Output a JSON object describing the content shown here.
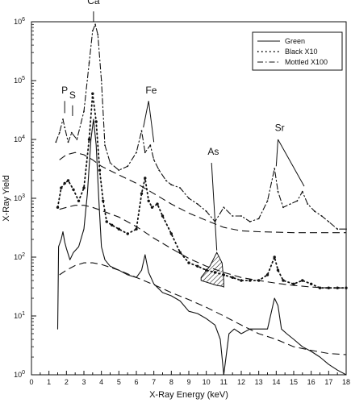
{
  "chart_data": {
    "type": "line",
    "xlabel": "X-Ray Energy (keV)",
    "ylabel": "X-Ray Yield",
    "xlim": [
      0,
      18
    ],
    "ylim": [
      1,
      1000000
    ],
    "yscale": "log",
    "x_ticks": [
      "0",
      "1",
      "2",
      "3",
      "4",
      "5",
      "6",
      "7",
      "8",
      "9",
      "10",
      "11",
      "12",
      "13",
      "14",
      "15",
      "16",
      "17",
      "18"
    ],
    "y_ticks": [
      {
        "value": 1,
        "base": "10",
        "exp": "0"
      },
      {
        "value": 10,
        "base": "10",
        "exp": "1"
      },
      {
        "value": 100,
        "base": "10",
        "exp": "2"
      },
      {
        "value": 1000,
        "base": "10",
        "exp": "3"
      },
      {
        "value": 10000,
        "base": "10",
        "exp": "4"
      },
      {
        "value": 100000,
        "base": "10",
        "exp": "5"
      },
      {
        "value": 1000000,
        "base": "10",
        "exp": "6"
      }
    ],
    "legend_position": "top-right",
    "series": [
      {
        "name": "Green",
        "style": "solid",
        "x": [
          1.5,
          1.55,
          1.7,
          1.8,
          1.9,
          2.0,
          2.2,
          2.4,
          2.7,
          3.0,
          3.2,
          3.4,
          3.55,
          3.7,
          3.85,
          4.0,
          4.2,
          4.5,
          5.0,
          5.5,
          6.0,
          6.3,
          6.5,
          6.7,
          7.0,
          7.5,
          8.0,
          8.5,
          9.0,
          9.5,
          10.0,
          10.5,
          10.8,
          11.0,
          11.3,
          11.6,
          12.0,
          12.5,
          13.0,
          13.5,
          13.9,
          14.1,
          14.3,
          14.6,
          15.0,
          15.5,
          16.0,
          16.5,
          17.0,
          17.5,
          18.0
        ],
        "y": [
          6,
          150,
          200,
          270,
          180,
          140,
          90,
          120,
          150,
          300,
          1200,
          10000,
          22000,
          8000,
          1000,
          150,
          90,
          70,
          60,
          50,
          45,
          60,
          110,
          55,
          35,
          25,
          22,
          18,
          12,
          11,
          9,
          7,
          4,
          1,
          5,
          6,
          5,
          6,
          6,
          6,
          20,
          15,
          6,
          5,
          4,
          3,
          2.5,
          2,
          1.5,
          1.2,
          1
        ]
      },
      {
        "name": "Black X10",
        "style": "dotted",
        "x": [
          1.5,
          1.7,
          1.9,
          2.1,
          2.4,
          2.7,
          3.0,
          3.3,
          3.5,
          3.7,
          3.9,
          4.1,
          4.3,
          4.6,
          5.0,
          5.5,
          6.0,
          6.3,
          6.5,
          6.7,
          6.9,
          7.2,
          7.5,
          8.0,
          8.5,
          9.0,
          9.5,
          10.0,
          10.5,
          11.0,
          11.5,
          12.0,
          12.5,
          13.0,
          13.5,
          13.9,
          14.1,
          14.4,
          15.0,
          15.5,
          16.0,
          16.5,
          17.0,
          17.5,
          18.0
        ],
        "y": [
          700,
          1500,
          1800,
          2000,
          1400,
          900,
          1500,
          10000,
          60000,
          20000,
          3000,
          900,
          400,
          350,
          300,
          250,
          300,
          1200,
          2200,
          900,
          700,
          800,
          500,
          250,
          120,
          80,
          70,
          60,
          55,
          50,
          45,
          40,
          40,
          40,
          50,
          100,
          60,
          40,
          35,
          40,
          35,
          30,
          30,
          30,
          30
        ]
      },
      {
        "name": "Mottled X100",
        "style": "dash-dot",
        "x": [
          1.4,
          1.6,
          1.8,
          1.9,
          2.1,
          2.3,
          2.6,
          3.0,
          3.3,
          3.5,
          3.65,
          3.8,
          4.0,
          4.2,
          4.5,
          5.0,
          5.5,
          6.0,
          6.3,
          6.5,
          6.8,
          7.0,
          7.3,
          7.7,
          8.0,
          8.5,
          9.0,
          9.5,
          10.0,
          10.5,
          11.0,
          11.5,
          12.0,
          12.5,
          13.0,
          13.5,
          13.9,
          14.1,
          14.4,
          14.8,
          15.2,
          15.5,
          15.8,
          16.2,
          16.6,
          17.0,
          17.5,
          18.0
        ],
        "y": [
          9000,
          13000,
          22000,
          16000,
          9000,
          13000,
          10000,
          30000,
          200000,
          700000,
          900000,
          600000,
          100000,
          8000,
          4000,
          3000,
          3500,
          6000,
          14000,
          6000,
          8000,
          4500,
          3000,
          2000,
          1700,
          1500,
          1000,
          800,
          600,
          400,
          700,
          500,
          500,
          400,
          450,
          900,
          3200,
          1300,
          700,
          800,
          900,
          1300,
          800,
          600,
          500,
          400,
          300,
          300
        ]
      }
    ],
    "backgrounds": [
      {
        "x": [
          1.6,
          2.0,
          2.5,
          3.0,
          3.5,
          4.0,
          5.0,
          6.0,
          7.0,
          8.0,
          9.0,
          10.0,
          11.0,
          12.0,
          13.0,
          14.0,
          15.0,
          16.0,
          17.0,
          18.0
        ],
        "y": [
          4500,
          5500,
          6000,
          5500,
          4500,
          3500,
          2500,
          1800,
          1200,
          800,
          560,
          420,
          320,
          280,
          270,
          265,
          260,
          260,
          260,
          260
        ]
      },
      {
        "x": [
          1.6,
          2.0,
          2.5,
          3.0,
          3.5,
          4.0,
          5.0,
          6.0,
          7.0,
          8.0,
          9.0,
          10.0,
          11.0,
          12.0,
          13.0,
          14.0,
          15.0,
          16.0,
          17.0,
          18.0
        ],
        "y": [
          650,
          700,
          760,
          760,
          700,
          620,
          480,
          330,
          210,
          140,
          95,
          70,
          55,
          45,
          40,
          36,
          33,
          31,
          30,
          30
        ]
      },
      {
        "x": [
          1.6,
          2.0,
          2.5,
          3.0,
          3.5,
          4.0,
          5.0,
          6.0,
          7.0,
          8.0,
          9.0,
          10.0,
          11.0,
          12.0,
          13.0,
          14.0,
          15.0,
          16.0,
          17.0,
          18.0
        ],
        "y": [
          50,
          60,
          72,
          80,
          80,
          75,
          60,
          45,
          34,
          25,
          19,
          14,
          10,
          7,
          5,
          4,
          3,
          2.6,
          2.3,
          2.2
        ]
      }
    ],
    "as_hatch": {
      "x": [
        9.7,
        10.2,
        10.6,
        10.9,
        11.0
      ],
      "top": [
        45,
        70,
        120,
        80,
        40
      ],
      "bottom": [
        40,
        36,
        33,
        32,
        31
      ]
    },
    "annotations": [
      {
        "text": "Ca",
        "x": 3.55,
        "y": 2000000,
        "lines": [
          [
            3.55,
            1500000,
            3.55,
            1000000
          ]
        ]
      },
      {
        "text": "P",
        "x": 1.9,
        "y": 60000,
        "lines": [
          [
            1.9,
            45000,
            1.9,
            28000
          ]
        ]
      },
      {
        "text": "S",
        "x": 2.35,
        "y": 50000,
        "lines": [
          [
            2.35,
            38000,
            2.35,
            25000
          ]
        ]
      },
      {
        "text": "Fe",
        "x": 6.85,
        "y": 60000,
        "lines": [
          [
            6.7,
            45000,
            6.4,
            16000
          ],
          [
            6.7,
            45000,
            7.0,
            9000
          ]
        ]
      },
      {
        "text": "As",
        "x": 10.4,
        "y": 5500,
        "lines": [
          [
            10.3,
            4000,
            10.6,
            130
          ]
        ]
      },
      {
        "text": "Sr",
        "x": 14.2,
        "y": 14000,
        "lines": [
          [
            14.1,
            10000,
            14.0,
            3500
          ],
          [
            14.1,
            10000,
            15.6,
            1600
          ]
        ]
      }
    ]
  }
}
